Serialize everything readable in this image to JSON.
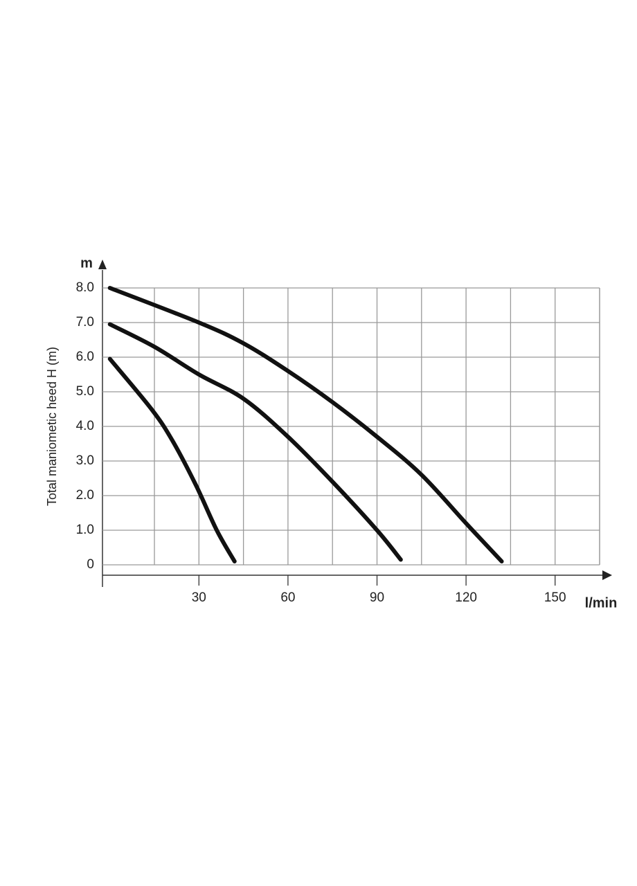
{
  "chart_data": {
    "type": "line",
    "y_axis_unit": "m",
    "x_axis_unit": "l/min",
    "y_title": "Total maniometic heed H (m)",
    "xlim": [
      -2.5,
      165
    ],
    "xticks": [
      30,
      60,
      90,
      120,
      150
    ],
    "x_minor_ticks": [
      15,
      45,
      75,
      105,
      135,
      165
    ],
    "ylim": [
      0,
      8
    ],
    "yticks": [
      0,
      {
        "value": 1,
        "label": "1.0"
      },
      {
        "value": 2,
        "label": "2.0"
      },
      {
        "value": 3,
        "label": "3.0"
      },
      {
        "value": 4,
        "label": "4.0"
      },
      {
        "value": 5,
        "label": "5.0"
      },
      {
        "value": 6,
        "label": "6.0"
      },
      {
        "value": 7,
        "label": "7.0"
      },
      {
        "value": 8,
        "label": "8.0"
      }
    ],
    "grid": true,
    "series": [
      {
        "color": "#111111",
        "x": [
          0,
          30,
          45,
          60,
          75,
          90,
          105,
          120,
          132
        ],
        "values": [
          8.0,
          7.0,
          6.4,
          5.6,
          4.7,
          3.7,
          2.6,
          1.2,
          0.1
        ]
      },
      {
        "color": "#111111",
        "x": [
          0,
          15,
          30,
          45,
          60,
          75,
          90,
          98
        ],
        "values": [
          6.95,
          6.3,
          5.5,
          4.8,
          3.7,
          2.4,
          1.0,
          0.15
        ]
      },
      {
        "color": "#111111",
        "x": [
          0,
          14,
          21,
          29,
          36,
          42
        ],
        "values": [
          5.95,
          4.5,
          3.6,
          2.3,
          1.0,
          0.1
        ]
      }
    ]
  }
}
